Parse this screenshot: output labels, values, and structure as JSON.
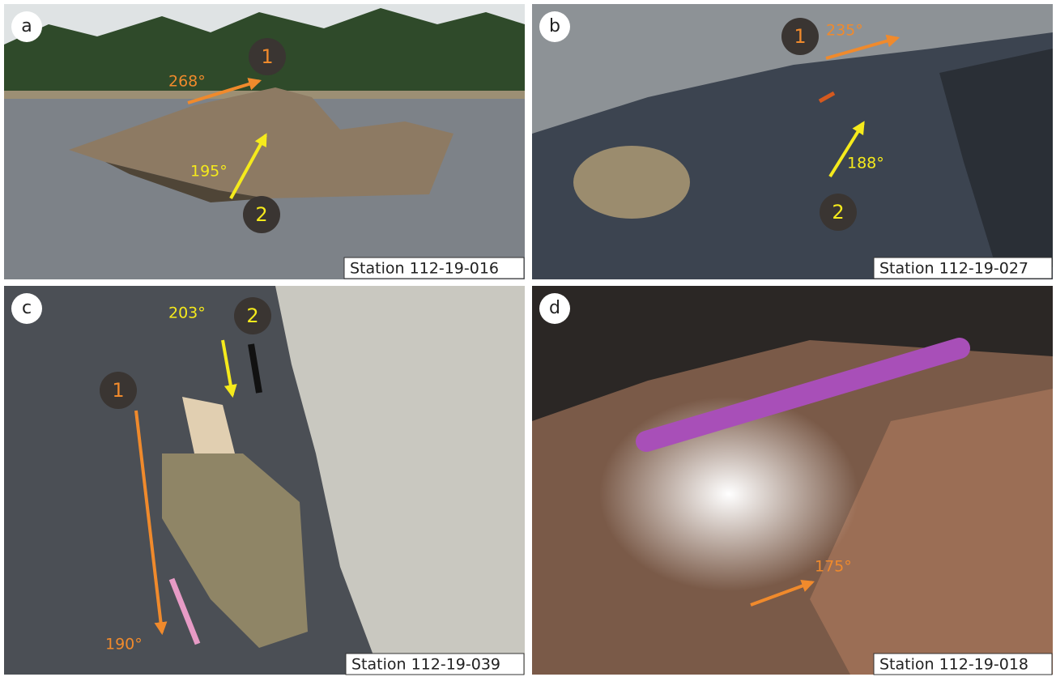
{
  "panels": [
    {
      "letter": "a",
      "station": "Station 112-19-016",
      "annotations": [
        {
          "number": "1",
          "angle": "268°"
        },
        {
          "number": "2",
          "angle": "195°"
        }
      ]
    },
    {
      "letter": "b",
      "station": "Station 112-19-027",
      "annotations": [
        {
          "number": "1",
          "angle": "235°"
        },
        {
          "number": "2",
          "angle": "188°"
        }
      ]
    },
    {
      "letter": "c",
      "station": "Station 112-19-039",
      "annotations": [
        {
          "number": "1",
          "angle": "190°"
        },
        {
          "number": "2",
          "angle": "203°"
        }
      ]
    },
    {
      "letter": "d",
      "station": "Station 112-19-018",
      "annotations": [
        {
          "angle": "175°"
        }
      ]
    }
  ]
}
